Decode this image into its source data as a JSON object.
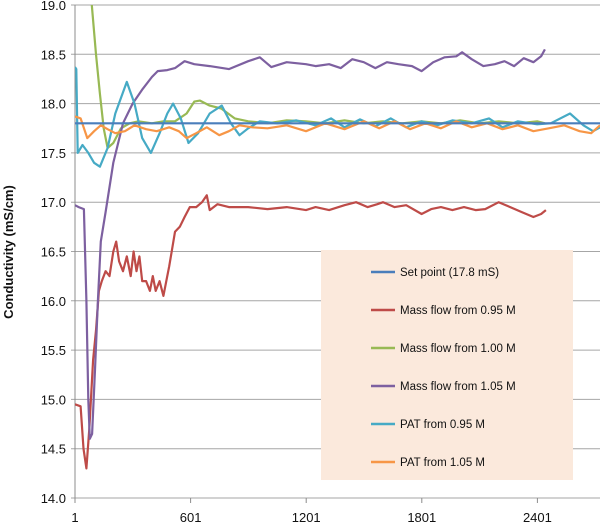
{
  "chart_data": {
    "type": "line",
    "title": "",
    "xlabel": "",
    "ylabel": "Conductivity (mS/cm)",
    "xlim": [
      1,
      2726
    ],
    "ylim": [
      14.0,
      19.0
    ],
    "grid": true,
    "legend_position": "bottom-right",
    "x_ticks": [
      "1",
      "601",
      "1201",
      "1801",
      "2401"
    ],
    "x_tick_values": [
      1,
      601,
      1201,
      1801,
      2401
    ],
    "y_ticks": [
      "14.0",
      "14.5",
      "15.0",
      "15.5",
      "16.0",
      "16.5",
      "17.0",
      "17.5",
      "18.0",
      "18.5",
      "19.0"
    ],
    "series": [
      {
        "name": "Set point (17.8 mS)",
        "color": "#4a7ebb",
        "points": [
          [
            1,
            17.8
          ],
          [
            2726,
            17.8
          ]
        ]
      },
      {
        "name": "Mass flow from 0.95 M",
        "color": "#be4b48",
        "points": [
          [
            1,
            14.95
          ],
          [
            30,
            14.93
          ],
          [
            45,
            14.5
          ],
          [
            60,
            14.3
          ],
          [
            75,
            14.7
          ],
          [
            95,
            15.4
          ],
          [
            110,
            15.7
          ],
          [
            125,
            16.1
          ],
          [
            140,
            16.2
          ],
          [
            160,
            16.3
          ],
          [
            180,
            16.25
          ],
          [
            200,
            16.5
          ],
          [
            215,
            16.6
          ],
          [
            230,
            16.4
          ],
          [
            250,
            16.3
          ],
          [
            270,
            16.45
          ],
          [
            290,
            16.25
          ],
          [
            305,
            16.5
          ],
          [
            320,
            16.3
          ],
          [
            335,
            16.45
          ],
          [
            350,
            16.2
          ],
          [
            370,
            16.2
          ],
          [
            390,
            16.1
          ],
          [
            405,
            16.25
          ],
          [
            420,
            16.1
          ],
          [
            440,
            16.2
          ],
          [
            460,
            16.05
          ],
          [
            475,
            16.2
          ],
          [
            490,
            16.35
          ],
          [
            503,
            16.5
          ],
          [
            520,
            16.7
          ],
          [
            545,
            16.75
          ],
          [
            570,
            16.85
          ],
          [
            597,
            16.95
          ],
          [
            630,
            16.95
          ],
          [
            660,
            17.0
          ],
          [
            685,
            17.07
          ],
          [
            700,
            16.92
          ],
          [
            740,
            16.98
          ],
          [
            800,
            16.95
          ],
          [
            900,
            16.95
          ],
          [
            1000,
            16.93
          ],
          [
            1100,
            16.95
          ],
          [
            1200,
            16.92
          ],
          [
            1250,
            16.95
          ],
          [
            1320,
            16.92
          ],
          [
            1400,
            16.97
          ],
          [
            1460,
            17.0
          ],
          [
            1520,
            16.95
          ],
          [
            1570,
            16.98
          ],
          [
            1600,
            17.0
          ],
          [
            1660,
            16.95
          ],
          [
            1720,
            16.97
          ],
          [
            1800,
            16.88
          ],
          [
            1850,
            16.93
          ],
          [
            1900,
            16.95
          ],
          [
            1960,
            16.92
          ],
          [
            2020,
            16.95
          ],
          [
            2080,
            16.92
          ],
          [
            2130,
            16.93
          ],
          [
            2200,
            17.0
          ],
          [
            2260,
            16.95
          ],
          [
            2320,
            16.9
          ],
          [
            2380,
            16.85
          ],
          [
            2420,
            16.88
          ],
          [
            2445,
            16.92
          ]
        ]
      },
      {
        "name": "Mass flow from 1.00 M",
        "color": "#98b954",
        "points": [
          [
            70,
            19.5
          ],
          [
            88,
            19.0
          ],
          [
            110,
            18.5
          ],
          [
            130,
            18.1
          ],
          [
            150,
            17.75
          ],
          [
            170,
            17.55
          ],
          [
            200,
            17.6
          ],
          [
            240,
            17.75
          ],
          [
            285,
            17.8
          ],
          [
            330,
            17.82
          ],
          [
            400,
            17.8
          ],
          [
            460,
            17.82
          ],
          [
            520,
            17.82
          ],
          [
            580,
            17.9
          ],
          [
            620,
            18.02
          ],
          [
            650,
            18.03
          ],
          [
            700,
            17.98
          ],
          [
            760,
            17.95
          ],
          [
            830,
            17.85
          ],
          [
            900,
            17.82
          ],
          [
            1000,
            17.8
          ],
          [
            1100,
            17.83
          ],
          [
            1200,
            17.82
          ],
          [
            1300,
            17.8
          ],
          [
            1400,
            17.83
          ],
          [
            1500,
            17.8
          ],
          [
            1600,
            17.82
          ],
          [
            1700,
            17.8
          ],
          [
            1800,
            17.82
          ],
          [
            1900,
            17.8
          ],
          [
            2000,
            17.83
          ],
          [
            2100,
            17.8
          ],
          [
            2200,
            17.82
          ],
          [
            2300,
            17.8
          ],
          [
            2400,
            17.82
          ],
          [
            2440,
            17.8
          ]
        ]
      },
      {
        "name": "Mass flow from 1.05 M",
        "color": "#7d60a0",
        "points": [
          [
            1,
            16.97
          ],
          [
            20,
            16.95
          ],
          [
            47,
            16.93
          ],
          [
            60,
            16.0
          ],
          [
            70,
            15.0
          ],
          [
            78,
            14.6
          ],
          [
            90,
            14.65
          ],
          [
            105,
            15.3
          ],
          [
            120,
            16.0
          ],
          [
            135,
            16.6
          ],
          [
            160,
            16.9
          ],
          [
            200,
            17.4
          ],
          [
            250,
            17.8
          ],
          [
            300,
            18.0
          ],
          [
            353,
            18.15
          ],
          [
            400,
            18.27
          ],
          [
            430,
            18.33
          ],
          [
            480,
            18.34
          ],
          [
            520,
            18.36
          ],
          [
            570,
            18.43
          ],
          [
            620,
            18.4
          ],
          [
            700,
            18.38
          ],
          [
            800,
            18.35
          ],
          [
            900,
            18.43
          ],
          [
            960,
            18.47
          ],
          [
            1020,
            18.37
          ],
          [
            1100,
            18.42
          ],
          [
            1200,
            18.4
          ],
          [
            1250,
            18.38
          ],
          [
            1320,
            18.4
          ],
          [
            1380,
            18.36
          ],
          [
            1440,
            18.45
          ],
          [
            1500,
            18.42
          ],
          [
            1560,
            18.36
          ],
          [
            1620,
            18.42
          ],
          [
            1680,
            18.4
          ],
          [
            1750,
            18.38
          ],
          [
            1800,
            18.33
          ],
          [
            1860,
            18.42
          ],
          [
            1920,
            18.47
          ],
          [
            1980,
            18.48
          ],
          [
            2010,
            18.52
          ],
          [
            2060,
            18.45
          ],
          [
            2120,
            18.38
          ],
          [
            2180,
            18.4
          ],
          [
            2230,
            18.43
          ],
          [
            2280,
            18.38
          ],
          [
            2330,
            18.46
          ],
          [
            2380,
            18.42
          ],
          [
            2420,
            18.48
          ],
          [
            2440,
            18.55
          ]
        ]
      },
      {
        "name": "PAT from 0.95 M",
        "color": "#46aac5",
        "points": [
          [
            1,
            18.37
          ],
          [
            8,
            18.35
          ],
          [
            15,
            17.5
          ],
          [
            40,
            17.58
          ],
          [
            70,
            17.5
          ],
          [
            100,
            17.4
          ],
          [
            130,
            17.36
          ],
          [
            170,
            17.55
          ],
          [
            210,
            17.9
          ],
          [
            270,
            18.22
          ],
          [
            310,
            18.0
          ],
          [
            350,
            17.65
          ],
          [
            395,
            17.5
          ],
          [
            440,
            17.7
          ],
          [
            480,
            17.9
          ],
          [
            510,
            18.0
          ],
          [
            550,
            17.85
          ],
          [
            590,
            17.6
          ],
          [
            640,
            17.7
          ],
          [
            700,
            17.9
          ],
          [
            763,
            17.98
          ],
          [
            810,
            17.8
          ],
          [
            855,
            17.68
          ],
          [
            900,
            17.75
          ],
          [
            960,
            17.82
          ],
          [
            1050,
            17.8
          ],
          [
            1150,
            17.83
          ],
          [
            1250,
            17.78
          ],
          [
            1330,
            17.85
          ],
          [
            1400,
            17.76
          ],
          [
            1480,
            17.84
          ],
          [
            1560,
            17.77
          ],
          [
            1640,
            17.85
          ],
          [
            1720,
            17.76
          ],
          [
            1800,
            17.82
          ],
          [
            1880,
            17.78
          ],
          [
            1960,
            17.83
          ],
          [
            2060,
            17.8
          ],
          [
            2150,
            17.85
          ],
          [
            2220,
            17.76
          ],
          [
            2300,
            17.82
          ],
          [
            2400,
            17.79
          ],
          [
            2470,
            17.8
          ],
          [
            2570,
            17.9
          ],
          [
            2640,
            17.78
          ],
          [
            2690,
            17.72
          ],
          [
            2726,
            17.76
          ]
        ]
      },
      {
        "name": "PAT from 1.05 M",
        "color": "#f79646",
        "points": [
          [
            1,
            17.87
          ],
          [
            30,
            17.85
          ],
          [
            65,
            17.65
          ],
          [
            100,
            17.72
          ],
          [
            135,
            17.78
          ],
          [
            170,
            17.74
          ],
          [
            210,
            17.7
          ],
          [
            260,
            17.72
          ],
          [
            310,
            17.78
          ],
          [
            370,
            17.74
          ],
          [
            425,
            17.72
          ],
          [
            490,
            17.76
          ],
          [
            540,
            17.72
          ],
          [
            580,
            17.65
          ],
          [
            630,
            17.7
          ],
          [
            685,
            17.76
          ],
          [
            750,
            17.68
          ],
          [
            800,
            17.72
          ],
          [
            855,
            17.78
          ],
          [
            920,
            17.76
          ],
          [
            1000,
            17.75
          ],
          [
            1100,
            17.78
          ],
          [
            1200,
            17.72
          ],
          [
            1300,
            17.8
          ],
          [
            1400,
            17.74
          ],
          [
            1500,
            17.82
          ],
          [
            1580,
            17.75
          ],
          [
            1660,
            17.82
          ],
          [
            1740,
            17.74
          ],
          [
            1820,
            17.8
          ],
          [
            1900,
            17.75
          ],
          [
            1980,
            17.82
          ],
          [
            2060,
            17.76
          ],
          [
            2140,
            17.8
          ],
          [
            2220,
            17.74
          ],
          [
            2300,
            17.78
          ],
          [
            2380,
            17.72
          ],
          [
            2460,
            17.75
          ],
          [
            2540,
            17.78
          ],
          [
            2620,
            17.72
          ],
          [
            2680,
            17.7
          ],
          [
            2726,
            17.78
          ]
        ]
      }
    ]
  }
}
